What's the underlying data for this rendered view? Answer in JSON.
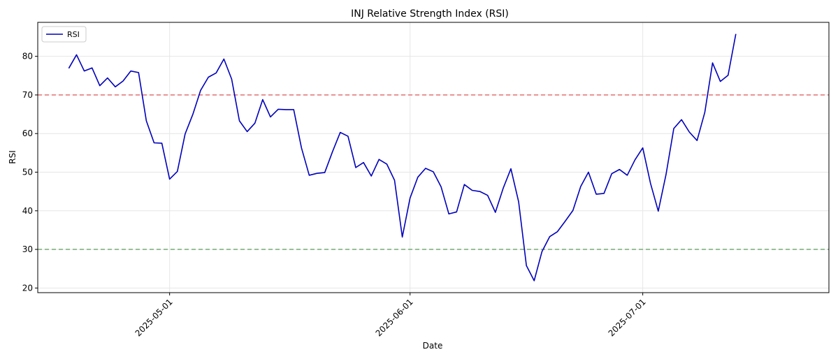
{
  "chart_data": {
    "type": "line",
    "title": "INJ Relative Strength Index (RSI)",
    "xlabel": "Date",
    "ylabel": "RSI",
    "x_start": "2025-04-18",
    "x_range_days": [
      -4,
      98
    ],
    "ylim": [
      18.8,
      88.8
    ],
    "yticks": [
      20,
      30,
      40,
      50,
      60,
      70,
      80
    ],
    "xticks": [
      {
        "label": "2025-05-01",
        "day": 13
      },
      {
        "label": "2025-06-01",
        "day": 44
      },
      {
        "label": "2025-07-01",
        "day": 74
      }
    ],
    "grid": true,
    "legend_position": "top-left",
    "reference_lines": [
      {
        "name": "overbought",
        "value": 70,
        "color": "#e06666"
      },
      {
        "name": "oversold",
        "value": 30,
        "color": "#6aa56a"
      }
    ],
    "series": [
      {
        "name": "RSI",
        "color": "#0000bb",
        "values": [
          76.9,
          80.4,
          76.2,
          77.0,
          72.4,
          74.4,
          72.1,
          73.6,
          76.2,
          75.8,
          63.3,
          57.6,
          57.5,
          48.2,
          50.2,
          59.9,
          65.0,
          71.2,
          74.6,
          75.7,
          79.3,
          74.1,
          63.3,
          60.5,
          62.7,
          68.8,
          64.3,
          66.3,
          66.2,
          66.2,
          56.3,
          49.2,
          49.7,
          49.9,
          55.3,
          60.3,
          59.3,
          51.2,
          52.5,
          49.0,
          53.3,
          52.1,
          47.9,
          33.2,
          43.3,
          48.7,
          51.0,
          50.1,
          46.2,
          39.2,
          39.7,
          46.8,
          45.3,
          45.0,
          44.0,
          39.6,
          45.8,
          50.9,
          42.3,
          25.8,
          21.9,
          29.4,
          33.3,
          34.6,
          37.3,
          40.1,
          46.3,
          50.0,
          44.3,
          44.5,
          49.6,
          50.7,
          49.2,
          53.2,
          56.3,
          47.1,
          39.9,
          49.4,
          61.3,
          63.6,
          60.4,
          58.2,
          65.5,
          78.3,
          73.5,
          75.1,
          85.8
        ]
      }
    ]
  }
}
